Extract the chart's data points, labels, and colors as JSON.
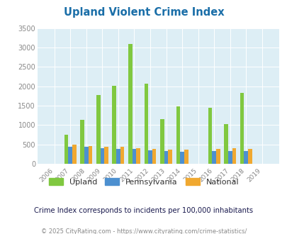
{
  "title": "Upland Violent Crime Index",
  "years": [
    2006,
    2007,
    2008,
    2009,
    2010,
    2011,
    2012,
    2013,
    2014,
    2015,
    2016,
    2017,
    2018,
    2019
  ],
  "upland": [
    0,
    750,
    1130,
    1780,
    2010,
    3090,
    2070,
    1150,
    1490,
    0,
    1440,
    1030,
    1820,
    0
  ],
  "pennsylvania": [
    0,
    430,
    430,
    400,
    380,
    375,
    345,
    330,
    320,
    0,
    325,
    330,
    325,
    0
  ],
  "national": [
    0,
    490,
    465,
    445,
    430,
    400,
    390,
    365,
    365,
    0,
    390,
    395,
    380,
    0
  ],
  "upland_color": "#80c840",
  "pa_color": "#4d90d0",
  "nat_color": "#f0a830",
  "bg_color": "#ddeef5",
  "ylim": [
    0,
    3500
  ],
  "yticks": [
    0,
    500,
    1000,
    1500,
    2000,
    2500,
    3000,
    3500
  ],
  "subtitle": "Crime Index corresponds to incidents per 100,000 inhabitants",
  "footer": "© 2025 CityRating.com - https://www.cityrating.com/crime-statistics/",
  "legend_labels": [
    "Upland",
    "Pennsylvania",
    "National"
  ],
  "bar_width": 0.25,
  "title_color": "#1a6ea8",
  "subtitle_color": "#1a1a4e",
  "footer_color": "#888888",
  "tick_color": "#888888"
}
